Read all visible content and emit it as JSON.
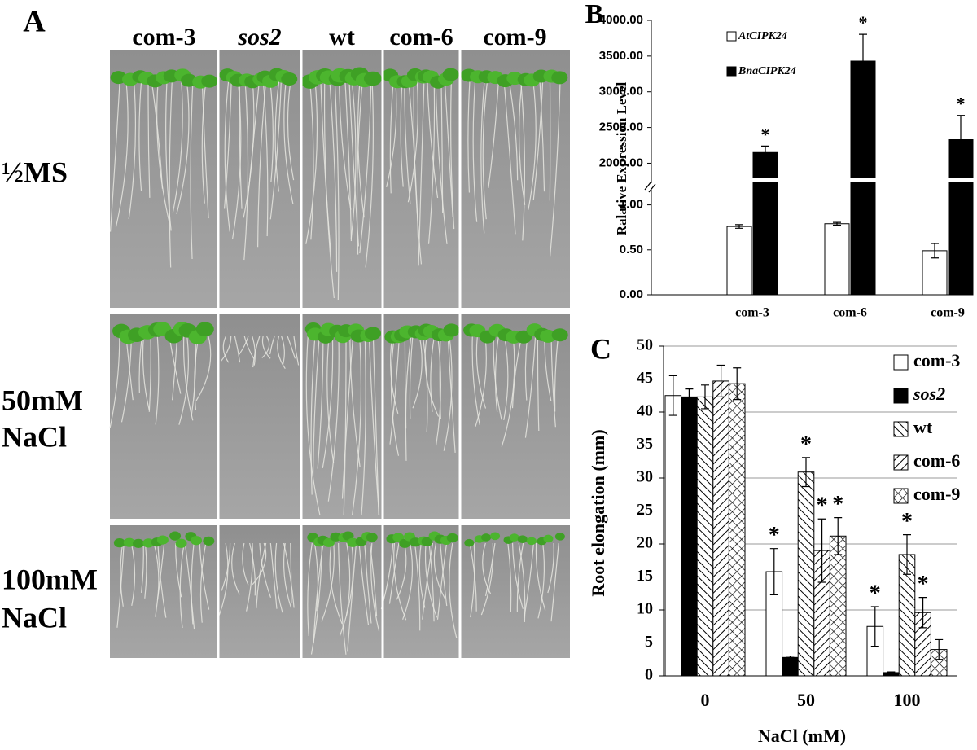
{
  "panel_a": {
    "label": "A",
    "columns": [
      {
        "text": "com-3",
        "italic": false
      },
      {
        "text": "sos2",
        "italic": true
      },
      {
        "text": "wt",
        "italic": false
      },
      {
        "text": "com-6",
        "italic": false
      },
      {
        "text": "com-9",
        "italic": false
      }
    ],
    "rows": [
      [
        "½MS"
      ],
      [
        "50mM",
        "NaCl"
      ],
      [
        "100mM",
        "NaCl"
      ]
    ]
  },
  "chart_data": [
    {
      "type": "bar",
      "panel_label": "B",
      "y_label": "Ralative  Expression  Level",
      "categories": [
        "com-3",
        "com-6",
        "com-9"
      ],
      "series": [
        {
          "name": "AtCIPK24",
          "color": "#ffffff",
          "values": [
            0.76,
            0.79,
            0.49
          ],
          "errors": [
            0.02,
            0.015,
            0.08
          ]
        },
        {
          "name": "BnaCIPK24",
          "color": "#000000",
          "values": [
            2150,
            3430,
            2330
          ],
          "errors": [
            90,
            375,
            340
          ],
          "stars": [
            "*",
            "*",
            "*"
          ]
        }
      ],
      "ylim": [
        0,
        1.25
      ],
      "ylim_upper": [
        1800,
        4000
      ],
      "yticks": [
        {
          "value": 0,
          "label": "0.00"
        },
        {
          "value": 0.5,
          "label": "0.50"
        },
        {
          "value": 1,
          "label": "1.00"
        },
        {
          "value": 2000,
          "label": "2000.00"
        },
        {
          "value": 2500,
          "label": "2500.00"
        },
        {
          "value": 3000,
          "label": "3000.00"
        },
        {
          "value": 3500,
          "label": "3500.00"
        },
        {
          "value": 4000,
          "label": "4000.00"
        }
      ],
      "grid": false,
      "legend": "top-left"
    },
    {
      "type": "bar",
      "panel_label": "C",
      "x_label": "NaCl (mM)",
      "y_label": "Root elongation (mm)",
      "categories": [
        "0",
        "50",
        "100"
      ],
      "series": [
        {
          "name": "com-3",
          "color": "#ffffff",
          "pattern": null,
          "values": [
            42.5,
            15.8,
            7.5
          ],
          "errors": [
            3.0,
            3.5,
            3.0
          ],
          "stars": [
            null,
            "*",
            "*"
          ]
        },
        {
          "name": "sos2",
          "color": "#000000",
          "pattern": null,
          "italic": true,
          "values": [
            42.3,
            2.8,
            0.5
          ],
          "errors": [
            1.2,
            0.2,
            0.1
          ],
          "stars": [
            null,
            null,
            null
          ]
        },
        {
          "name": "wt",
          "color": "#000000",
          "pattern": "hatch-back",
          "values": [
            42.3,
            30.9,
            18.4
          ],
          "errors": [
            1.8,
            2.2,
            3.0
          ],
          "stars": [
            null,
            "*",
            "*"
          ]
        },
        {
          "name": "com-6",
          "color": "#000000",
          "pattern": "hatch-forward",
          "values": [
            44.7,
            19.0,
            9.6
          ],
          "errors": [
            2.4,
            4.8,
            2.3
          ],
          "stars": [
            null,
            "*",
            "*"
          ]
        },
        {
          "name": "com-9",
          "color": "#000000",
          "pattern": "crosshatch",
          "values": [
            44.3,
            21.2,
            4.0
          ],
          "errors": [
            2.4,
            2.8,
            1.5
          ],
          "stars": [
            null,
            "*",
            null
          ]
        }
      ],
      "ylim": [
        0,
        50
      ],
      "yticks": [
        0,
        5,
        10,
        15,
        20,
        25,
        30,
        35,
        40,
        45,
        50
      ],
      "grid": true,
      "legend": "top-right"
    }
  ]
}
